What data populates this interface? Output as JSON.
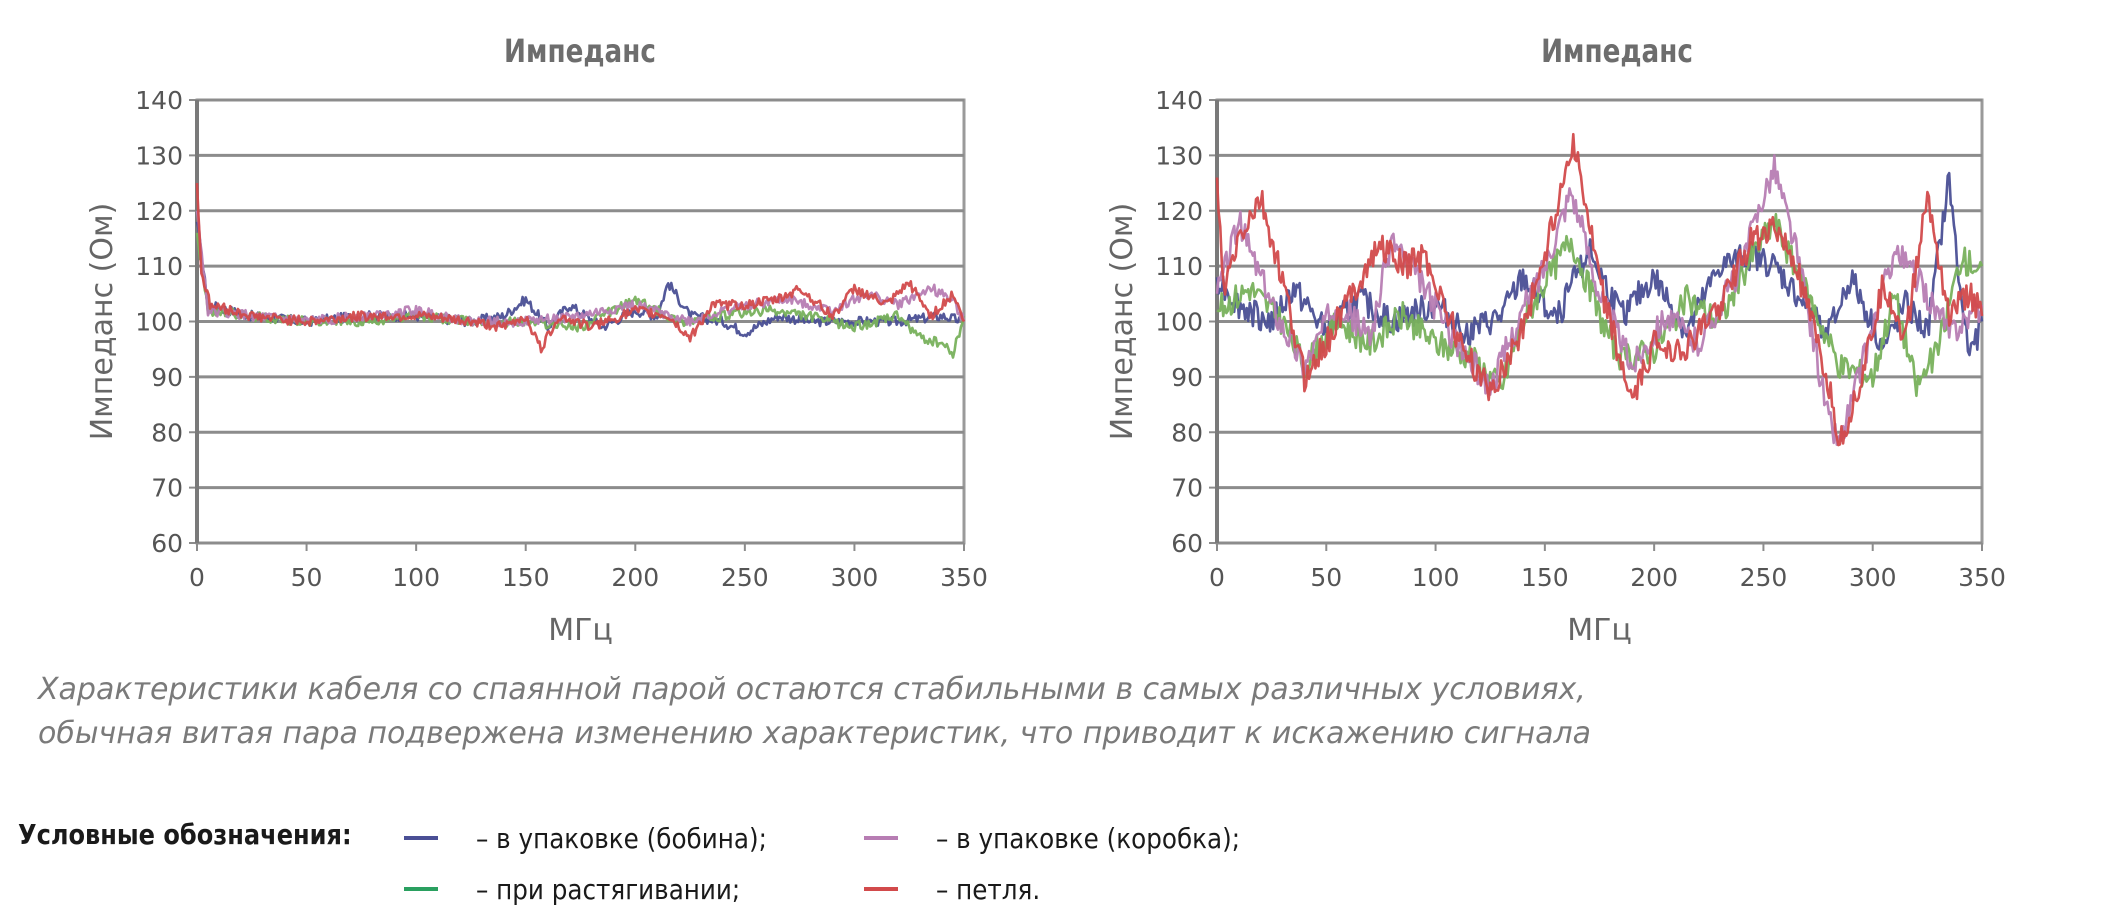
{
  "chart_data": [
    {
      "type": "line",
      "title": "Импеданс",
      "xlabel": "МГц",
      "ylabel": "Импеданс (Ом)",
      "xlim": [
        0,
        350
      ],
      "ylim": [
        60,
        140
      ],
      "xticks": [
        "0",
        "50",
        "100",
        "150",
        "200",
        "250",
        "300",
        "350"
      ],
      "yticks": [
        "60",
        "70",
        "80",
        "90",
        "100",
        "110",
        "120",
        "130",
        "140"
      ],
      "grid": true,
      "series": [
        {
          "name": "в упаковке (бобина)",
          "color": "#4a4f95",
          "x": [
            0,
            5,
            25,
            50,
            75,
            100,
            125,
            140,
            150,
            160,
            170,
            185,
            200,
            210,
            215,
            225,
            240,
            250,
            265,
            280,
            300,
            320,
            340,
            350
          ],
          "y": [
            118,
            103,
            101,
            100,
            101,
            101,
            100,
            101,
            104,
            99,
            103,
            99,
            102,
            101,
            107,
            101,
            100,
            98,
            101,
            100,
            100,
            100,
            101,
            100
          ]
        },
        {
          "name": "при растягивании",
          "color": "#78b15c",
          "x": [
            0,
            5,
            25,
            50,
            75,
            100,
            125,
            150,
            175,
            200,
            220,
            240,
            260,
            280,
            300,
            320,
            330,
            340,
            345,
            350
          ],
          "y": [
            116,
            102,
            101,
            100,
            100,
            101,
            100,
            100,
            99,
            104,
            100,
            101,
            102,
            101,
            99,
            101,
            97,
            96,
            94,
            101
          ]
        },
        {
          "name": "в упаковке (коробка)",
          "color": "#b77db3",
          "x": [
            0,
            5,
            25,
            50,
            75,
            100,
            125,
            150,
            175,
            200,
            225,
            250,
            270,
            290,
            305,
            320,
            335,
            345,
            350
          ],
          "y": [
            120,
            102,
            101,
            100,
            101,
            102,
            100,
            100,
            101,
            103,
            100,
            103,
            104,
            102,
            105,
            103,
            106,
            104,
            100
          ]
        },
        {
          "name": "петля",
          "color": "#d24a4b",
          "x": [
            0,
            2,
            6,
            25,
            50,
            75,
            100,
            125,
            140,
            150,
            157,
            165,
            180,
            200,
            215,
            225,
            235,
            250,
            265,
            275,
            290,
            300,
            315,
            325,
            335,
            345,
            350
          ],
          "y": [
            125,
            109,
            103,
            101,
            100,
            101,
            101,
            100,
            99,
            101,
            95,
            101,
            99,
            102,
            101,
            97,
            103,
            103,
            104,
            106,
            101,
            106,
            103,
            107,
            101,
            105,
            100
          ]
        }
      ]
    },
    {
      "type": "line",
      "title": "Импеданс",
      "xlabel": "МГц",
      "ylabel": "Импеданс (Ом)",
      "xlim": [
        0,
        350
      ],
      "ylim": [
        60,
        140
      ],
      "xticks": [
        "0",
        "50",
        "100",
        "150",
        "200",
        "250",
        "300",
        "350"
      ],
      "yticks": [
        "60",
        "70",
        "80",
        "90",
        "100",
        "110",
        "120",
        "130",
        "140"
      ],
      "grid": true,
      "series": [
        {
          "name": "в упаковке (бобина)",
          "color": "#4a4f95",
          "x": [
            0,
            10,
            25,
            35,
            50,
            65,
            80,
            100,
            115,
            130,
            140,
            155,
            170,
            185,
            200,
            215,
            230,
            245,
            255,
            265,
            280,
            290,
            305,
            315,
            325,
            335,
            340,
            345,
            350
          ],
          "y": [
            108,
            103,
            100,
            106,
            98,
            104,
            100,
            103,
            98,
            101,
            108,
            100,
            113,
            101,
            108,
            98,
            110,
            112,
            110,
            105,
            98,
            108,
            95,
            103,
            98,
            126,
            105,
            94,
            100
          ]
        },
        {
          "name": "при растягивании",
          "color": "#78b15c",
          "x": [
            0,
            15,
            30,
            40,
            55,
            70,
            85,
            100,
            115,
            130,
            140,
            150,
            162,
            175,
            185,
            200,
            215,
            230,
            245,
            255,
            270,
            285,
            300,
            310,
            320,
            330,
            340,
            350
          ],
          "y": [
            102,
            106,
            100,
            92,
            100,
            96,
            101,
            96,
            94,
            88,
            100,
            107,
            115,
            101,
            93,
            95,
            104,
            100,
            112,
            118,
            105,
            92,
            90,
            105,
            88,
            95,
            111,
            110
          ]
        },
        {
          "name": "в упаковке (коробка)",
          "color": "#b77db3",
          "x": [
            0,
            10,
            25,
            40,
            55,
            70,
            80,
            95,
            110,
            125,
            140,
            150,
            162,
            175,
            190,
            205,
            220,
            240,
            250,
            255,
            265,
            280,
            285,
            295,
            310,
            320,
            335,
            350
          ],
          "y": [
            105,
            118,
            103,
            92,
            104,
            97,
            115,
            106,
            96,
            88,
            102,
            110,
            124,
            105,
            92,
            101,
            96,
            110,
            123,
            128,
            113,
            82,
            78,
            92,
            113,
            108,
            98,
            103
          ]
        },
        {
          "name": "петля",
          "color": "#d24a4b",
          "x": [
            0,
            3,
            10,
            20,
            30,
            40,
            50,
            60,
            75,
            85,
            95,
            110,
            125,
            140,
            150,
            163,
            175,
            190,
            200,
            215,
            230,
            245,
            255,
            265,
            280,
            285,
            295,
            305,
            315,
            325,
            335,
            345,
            350
          ],
          "y": [
            126,
            105,
            115,
            122,
            107,
            90,
            96,
            104,
            114,
            110,
            112,
            97,
            87,
            99,
            112,
            133,
            107,
            85,
            96,
            95,
            103,
            115,
            117,
            110,
            88,
            78,
            90,
            107,
            97,
            123,
            101,
            105,
            101
          ]
        }
      ]
    }
  ],
  "caption": {
    "line1": "Характеристики кабеля со спаянной парой остаются стабильными в самых различных условиях,",
    "line2": "обычная витая пара подвержена изменению характеристик, что приводит к искажению сигнала"
  },
  "legend": {
    "title": "Условные обозначения:",
    "items": [
      {
        "label": "– в упаковке (бобина);",
        "color": "#4a4f95"
      },
      {
        "label": "– в упаковке (коробка);",
        "color": "#b77db3"
      },
      {
        "label": "– при растягивании;",
        "color": "#2aa060"
      },
      {
        "label": "– петля.",
        "color": "#d24a4b"
      }
    ]
  }
}
